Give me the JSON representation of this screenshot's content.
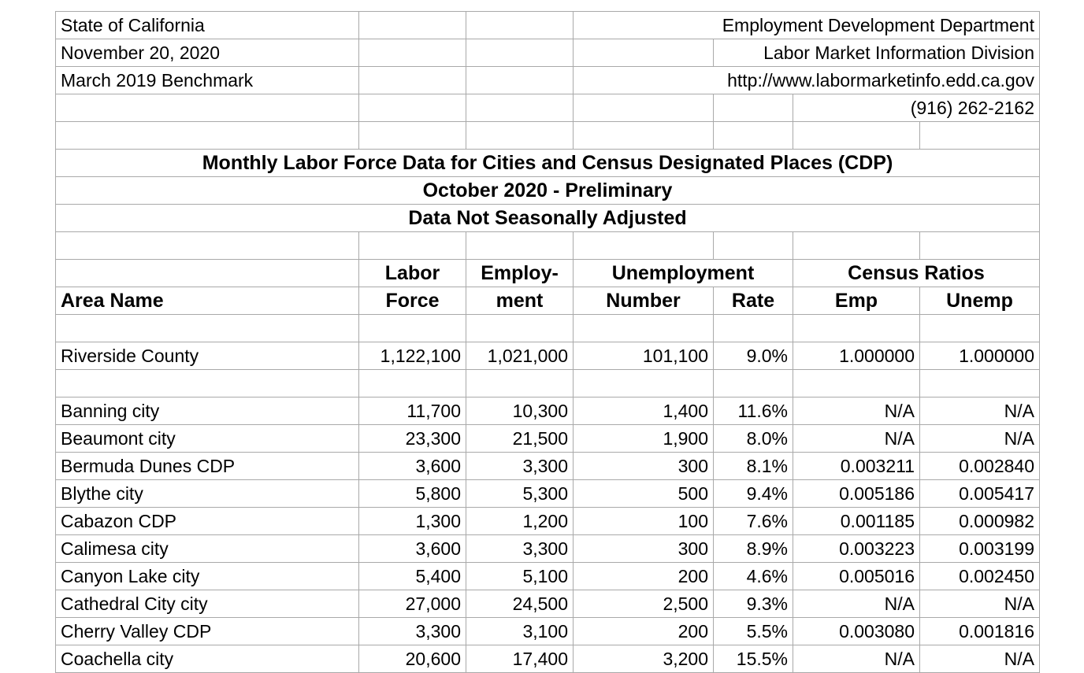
{
  "sheet": {
    "info": {
      "state": "State of California",
      "date": "November 20, 2020",
      "benchmark": "March 2019 Benchmark",
      "department": "Employment Development Department",
      "division": "Labor Market Information Division",
      "website": "http://www.labormarketinfo.edd.ca.gov",
      "phone": "(916) 262-2162"
    },
    "titles": {
      "main": "Monthly Labor Force Data for Cities and Census Designated Places (CDP)",
      "period": "October 2020 - Preliminary",
      "note": "Data Not Seasonally Adjusted"
    },
    "header": {
      "area_name": "Area Name",
      "labor": "Labor",
      "force": "Force",
      "employ": "Employ-",
      "ment": "ment",
      "unemployment": "Unemployment",
      "number": "Number",
      "rate": "Rate",
      "census_ratios": "Census Ratios",
      "emp": "Emp",
      "unemp": "Unemp"
    },
    "column_keys": [
      "area-name",
      "labor-force",
      "employment",
      "unemployment-number",
      "unemployment-rate",
      "census-ratio-emp",
      "census-ratio-unemp"
    ],
    "county_row": [
      "Riverside County",
      "1,122,100",
      "1,021,000",
      "101,100",
      "9.0%",
      "1.000000",
      "1.000000"
    ],
    "city_rows": [
      [
        "Banning city",
        "11,700",
        "10,300",
        "1,400",
        "11.6%",
        "N/A",
        "N/A"
      ],
      [
        "Beaumont city",
        "23,300",
        "21,500",
        "1,900",
        "8.0%",
        "N/A",
        "N/A"
      ],
      [
        "Bermuda Dunes CDP",
        "3,600",
        "3,300",
        "300",
        "8.1%",
        "0.003211",
        "0.002840"
      ],
      [
        "Blythe city",
        "5,800",
        "5,300",
        "500",
        "9.4%",
        "0.005186",
        "0.005417"
      ],
      [
        "Cabazon CDP",
        "1,300",
        "1,200",
        "100",
        "7.6%",
        "0.001185",
        "0.000982"
      ],
      [
        "Calimesa city",
        "3,600",
        "3,300",
        "300",
        "8.9%",
        "0.003223",
        "0.003199"
      ],
      [
        "Canyon Lake city",
        "5,400",
        "5,100",
        "200",
        "4.6%",
        "0.005016",
        "0.002450"
      ],
      [
        "Cathedral City city",
        "27,000",
        "24,500",
        "2,500",
        "9.3%",
        "N/A",
        "N/A"
      ],
      [
        "Cherry Valley CDP",
        "3,300",
        "3,100",
        "200",
        "5.5%",
        "0.003080",
        "0.001816"
      ],
      [
        "Coachella city",
        "20,600",
        "17,400",
        "3,200",
        "15.5%",
        "N/A",
        "N/A"
      ]
    ]
  }
}
